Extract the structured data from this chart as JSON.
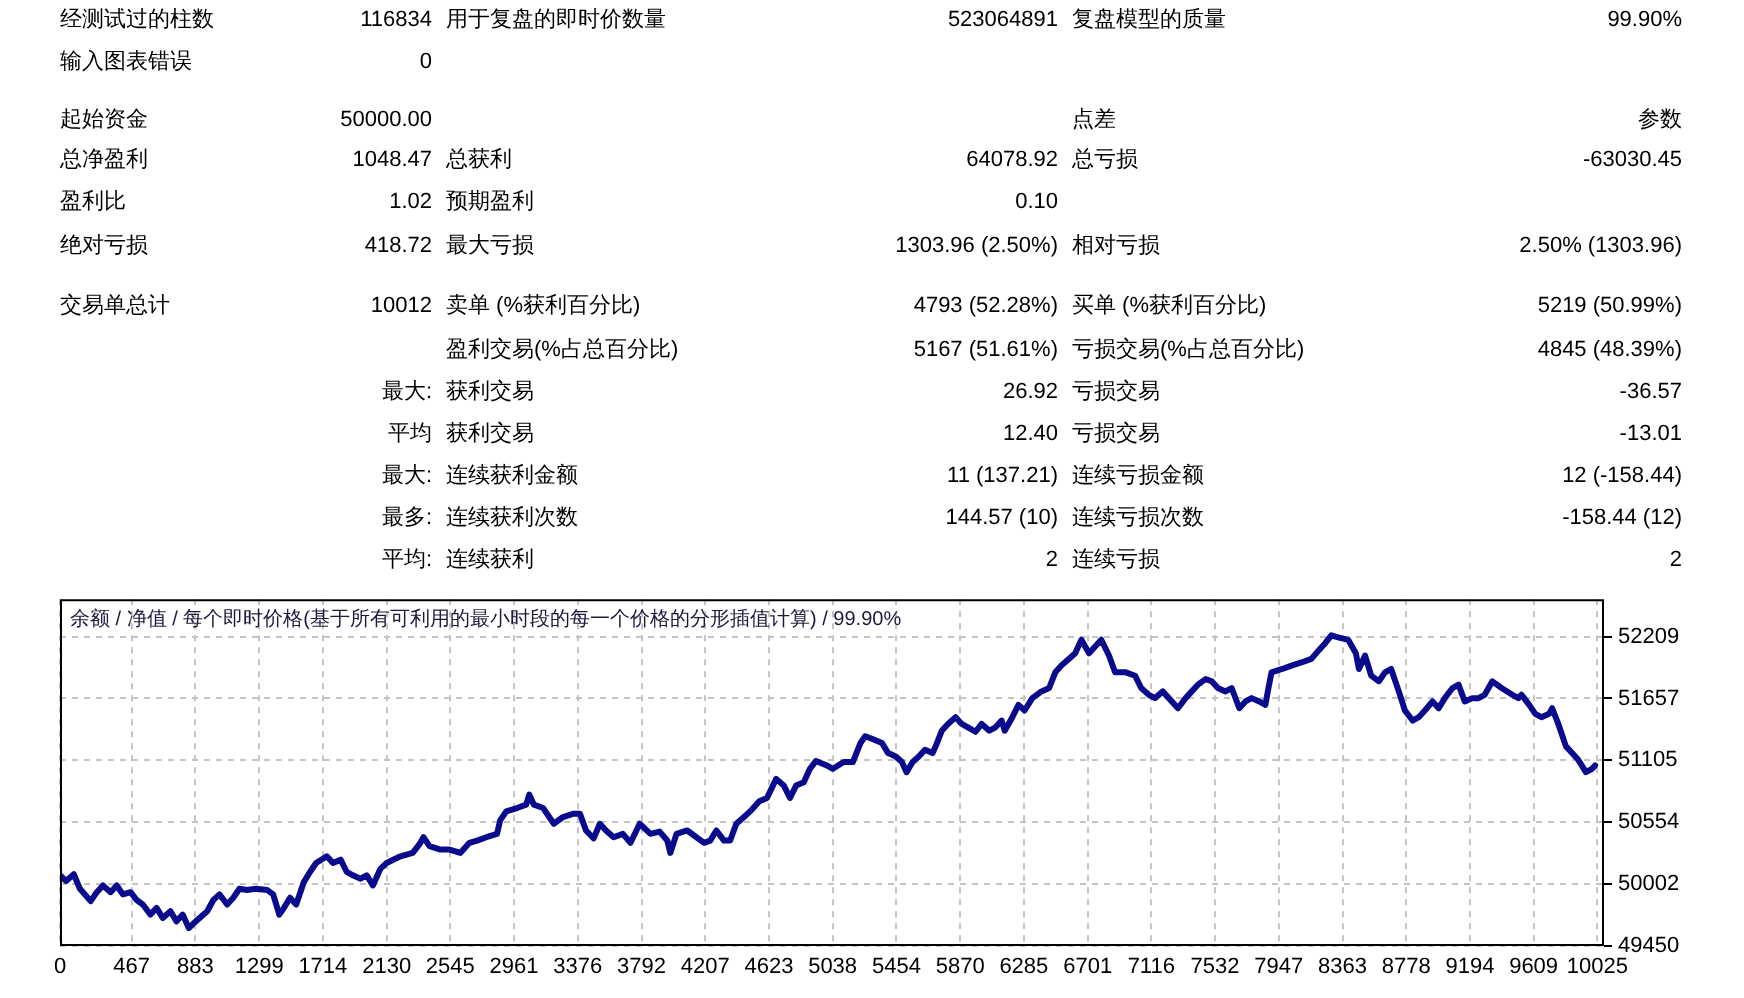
{
  "chart_data": [
    {
      "type": "other",
      "annotations": [
        "经测试过的柱数",
        "116834",
        "用于复盘的即时价数量",
        "523064891",
        "复盘模型的质量",
        "99.90%",
        "输入图表错误",
        "0",
        "起始资金",
        "50000.00",
        "点差",
        "参数",
        "总净盈利",
        "1048.47",
        "总获利",
        "64078.92",
        "总亏损",
        "-63030.45",
        "盈利比",
        "1.02",
        "预期盈利",
        "0.10",
        "绝对亏损",
        "418.72",
        "最大亏损",
        "1303.96 (2.50%)",
        "相对亏损",
        "2.50% (1303.96)",
        "交易单总计",
        "10012",
        "卖单 (%获利百分比)",
        "4793 (52.28%)",
        "买单 (%获利百分比)",
        "5219 (50.99%)",
        "盈利交易(%占总百分比)",
        "5167 (51.61%)",
        "亏损交易(%占总百分比)",
        "4845 (48.39%)",
        "最大:",
        "获利交易",
        "26.92",
        "亏损交易",
        "-36.57",
        "平均",
        "获利交易",
        "12.40",
        "亏损交易",
        "-13.01",
        "最大:",
        "连续获利金额",
        "11 (137.21)",
        "连续亏损金额",
        "12 (-158.44)",
        "最多:",
        "连续获利次数",
        "144.57 (10)",
        "连续亏损次数",
        "-158.44 (12)",
        "平均:",
        "连续获利",
        "2",
        "连续亏损",
        "2"
      ]
    },
    {
      "type": "line",
      "title": "余额 / 净值 / 每个即时价格(基于所有可利用的最小时段的每一个价格的分形插值计算) / 99.90%",
      "x": [
        0,
        40,
        90,
        130,
        200,
        240,
        280,
        330,
        370,
        410,
        460,
        500,
        540,
        590,
        630,
        670,
        720,
        760,
        800,
        840,
        870,
        910,
        960,
        1000,
        1040,
        1090,
        1130,
        1170,
        1220,
        1280,
        1350,
        1390,
        1430,
        1460,
        1500,
        1540,
        1590,
        1630,
        1670,
        1740,
        1780,
        1830,
        1870,
        1910,
        1960,
        2000,
        2040,
        2090,
        2130,
        2220,
        2300,
        2350,
        2370,
        2410,
        2480,
        2540,
        2610,
        2670,
        2720,
        2780,
        2850,
        2870,
        2910,
        2980,
        3040,
        3060,
        3090,
        3150,
        3220,
        3280,
        3350,
        3390,
        3430,
        3480,
        3520,
        3560,
        3610,
        3670,
        3720,
        3780,
        3850,
        3910,
        3960,
        3980,
        4020,
        4090,
        4150,
        4200,
        4240,
        4280,
        4330,
        4370,
        4410,
        4460,
        4500,
        4560,
        4610,
        4670,
        4720,
        4760,
        4800,
        4850,
        4890,
        4930,
        5000,
        5040,
        5110,
        5170,
        5220,
        5250,
        5290,
        5360,
        5400,
        5450,
        5490,
        5520,
        5560,
        5600,
        5640,
        5690,
        5710,
        5750,
        5790,
        5840,
        5880,
        5920,
        5970,
        6010,
        6060,
        6100,
        6140,
        6160,
        6210,
        6250,
        6290,
        6340,
        6400,
        6450,
        6490,
        6530,
        6580,
        6620,
        6660,
        6710,
        6750,
        6790,
        6840,
        6880,
        6950,
        7010,
        7050,
        7100,
        7140,
        7190,
        7230,
        7290,
        7340,
        7380,
        7420,
        7470,
        7510,
        7550,
        7600,
        7640,
        7690,
        7730,
        7770,
        7820,
        7860,
        7880,
        7900,
        7970,
        8030,
        8100,
        8160,
        8210,
        8250,
        8290,
        8340,
        8400,
        8450,
        8470,
        8510,
        8550,
        8600,
        8640,
        8680,
        8730,
        8770,
        8820,
        8860,
        8900,
        8950,
        8990,
        9030,
        9080,
        9120,
        9160,
        9210,
        9250,
        9290,
        9340,
        9400,
        9470,
        9510,
        9530,
        9580,
        9620,
        9660,
        9710,
        9730,
        9770,
        9820,
        9860,
        9900,
        9950,
        9990,
        10010
      ],
      "series": [
        {
          "color": "#0a0a8c",
          "values": [
            50080,
            50030,
            50090,
            49960,
            49850,
            49930,
            49990,
            49930,
            49990,
            49910,
            49930,
            49860,
            49820,
            49730,
            49790,
            49700,
            49760,
            49670,
            49730,
            49610,
            49650,
            49700,
            49760,
            49860,
            49910,
            49820,
            49880,
            49960,
            49950,
            49960,
            49950,
            49910,
            49730,
            49790,
            49880,
            49820,
            50020,
            50110,
            50190,
            50250,
            50190,
            50220,
            50110,
            50080,
            50050,
            50080,
            49990,
            50140,
            50190,
            50250,
            50280,
            50370,
            50420,
            50340,
            50310,
            50310,
            50280,
            50370,
            50390,
            50420,
            50450,
            50570,
            50650,
            50680,
            50710,
            50800,
            50710,
            50680,
            50540,
            50600,
            50630,
            50630,
            50480,
            50410,
            50540,
            50480,
            50420,
            50450,
            50370,
            50540,
            50450,
            50470,
            50390,
            50280,
            50450,
            50480,
            50420,
            50370,
            50390,
            50480,
            50390,
            50390,
            50540,
            50600,
            50650,
            50740,
            50770,
            50940,
            50880,
            50770,
            50880,
            50910,
            51030,
            51100,
            51060,
            51030,
            51090,
            51090,
            51260,
            51320,
            51300,
            51260,
            51170,
            51140,
            51090,
            51000,
            51090,
            51140,
            51200,
            51170,
            51230,
            51370,
            51430,
            51490,
            51430,
            51400,
            51360,
            51430,
            51370,
            51400,
            51460,
            51370,
            51490,
            51600,
            51550,
            51660,
            51720,
            51750,
            51890,
            51950,
            52010,
            52060,
            52180,
            52060,
            52120,
            52180,
            52040,
            51890,
            51890,
            51860,
            51750,
            51690,
            51660,
            51720,
            51660,
            51570,
            51660,
            51720,
            51780,
            51830,
            51810,
            51750,
            51720,
            51750,
            51570,
            51630,
            51660,
            51630,
            51600,
            51750,
            51890,
            51920,
            51950,
            51980,
            52010,
            52090,
            52150,
            52220,
            52200,
            52180,
            52060,
            51920,
            52040,
            51860,
            51810,
            51890,
            51920,
            51720,
            51550,
            51460,
            51490,
            51550,
            51630,
            51570,
            51660,
            51750,
            51780,
            51630,
            51660,
            51660,
            51690,
            51810,
            51750,
            51690,
            51660,
            51690,
            51600,
            51520,
            51490,
            51520,
            51570,
            51430,
            51230,
            51170,
            51110,
            51000,
            51030,
            51060
          ]
        }
      ],
      "xlim": [
        0,
        10068
      ],
      "xticks": [
        0,
        467,
        883,
        1299,
        1714,
        2130,
        2545,
        2961,
        3376,
        3792,
        4207,
        4623,
        5038,
        5454,
        5870,
        6285,
        6701,
        7116,
        7532,
        7947,
        8363,
        8778,
        9194,
        9609,
        10025
      ],
      "ylim": [
        49450,
        52542
      ],
      "yticks": [
        49450,
        50002,
        50554,
        51105,
        51657,
        52209
      ],
      "grid": true
    }
  ]
}
